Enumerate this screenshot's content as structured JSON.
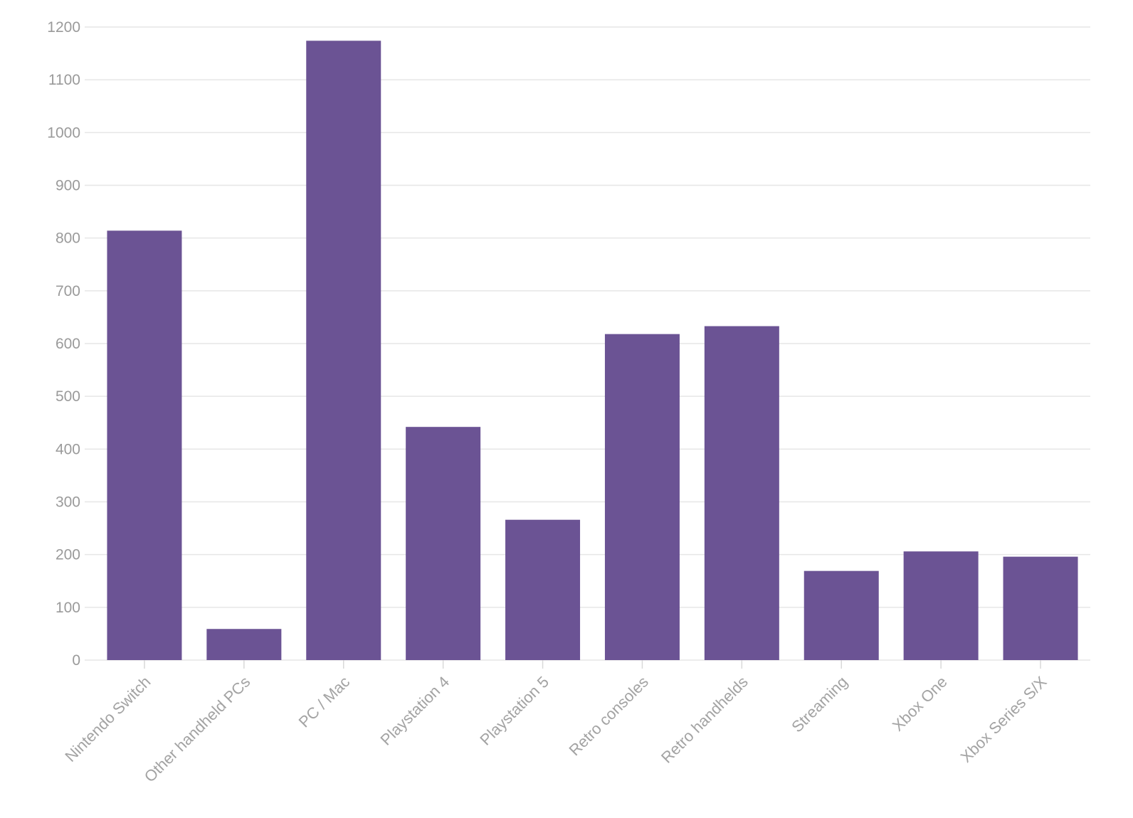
{
  "chart_data": {
    "type": "bar",
    "title": "",
    "xlabel": "",
    "ylabel": "",
    "categories": [
      "Nintendo Switch",
      "Other handheld PCs",
      "PC / Mac",
      "Playstation 4",
      "Playstation 5",
      "Retro consoles",
      "Retro handhelds",
      "Streaming",
      "Xbox One",
      "Xbox Series S/X"
    ],
    "values": [
      814,
      59,
      1174,
      442,
      266,
      618,
      633,
      169,
      206,
      196
    ],
    "ylim": [
      0,
      1200
    ],
    "yticks": [
      0,
      100,
      200,
      300,
      400,
      500,
      600,
      700,
      800,
      900,
      1000,
      1100,
      1200
    ],
    "grid": true,
    "legend": "none",
    "colors": {
      "bar": "#6b5394",
      "grid": "#e6e6e6",
      "tick_text": "#9a9a9a"
    }
  }
}
